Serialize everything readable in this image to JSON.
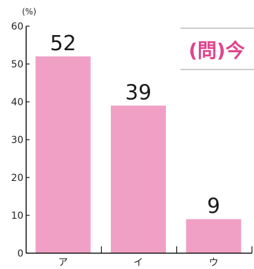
{
  "chart_data": {
    "type": "bar",
    "categories": [
      "ア",
      "イ",
      "ウ"
    ],
    "values": [
      52,
      39,
      9
    ],
    "value_labels": [
      "52",
      "39",
      "9"
    ],
    "unit": "(%)",
    "ylim": [
      0,
      60
    ],
    "yticks": [
      "0",
      "10",
      "20",
      "30",
      "40",
      "50",
      "60"
    ],
    "grid": false,
    "bar_color": "#f0a0c4"
  },
  "title_box": {
    "text": "(問)今",
    "color": "#e0448c"
  }
}
